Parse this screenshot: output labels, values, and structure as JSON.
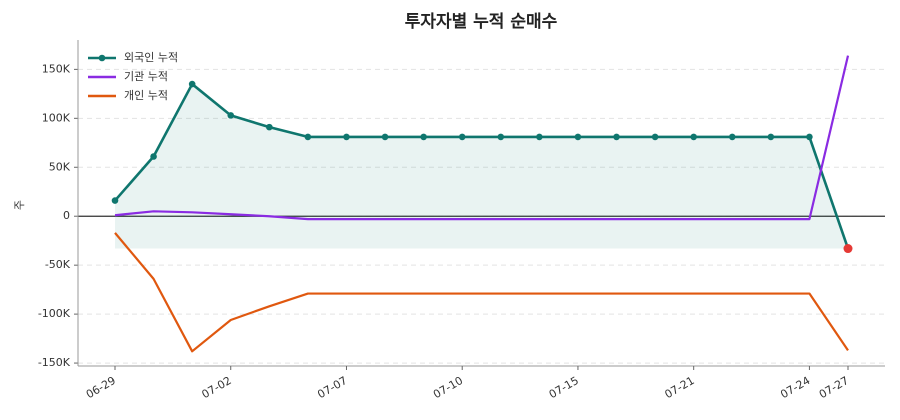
{
  "chart_data": {
    "type": "line",
    "title": "투자자별 누적 순매수",
    "y_label": "주",
    "categories": [
      "06-29",
      null,
      null,
      "07-02",
      null,
      null,
      "07-07",
      null,
      null,
      "07-10",
      null,
      null,
      "07-15",
      null,
      null,
      "07-21",
      null,
      null,
      "07-24",
      "07-27"
    ],
    "series": [
      {
        "name": "외국인 누적",
        "color": "#0f766e",
        "values": [
          16000,
          61000,
          135000,
          103000,
          91000,
          81000,
          81000,
          81000,
          81000,
          81000,
          81000,
          81000,
          81000,
          81000,
          81000,
          81000,
          81000,
          81000,
          81000,
          -33000
        ]
      },
      {
        "name": "기관 누적",
        "color": "#8a2be2",
        "values": [
          1000,
          5000,
          4000,
          2000,
          0,
          -3000,
          -3000,
          -3000,
          -3000,
          -3000,
          -3000,
          -3000,
          -3000,
          -3000,
          -3000,
          -3000,
          -3000,
          -3000,
          -3000,
          164000
        ]
      },
      {
        "name": "개인 누적",
        "color": "#e0580f",
        "values": [
          -17000,
          -64000,
          -138000,
          -106000,
          -92000,
          -79000,
          -79000,
          -79000,
          -79000,
          -79000,
          -79000,
          -79000,
          -79000,
          -79000,
          -79000,
          -79000,
          -79000,
          -79000,
          -79000,
          -137000
        ]
      }
    ],
    "ylim": [
      -153000,
      180000
    ],
    "yticks": [
      {
        "value": -150000,
        "label": "-150K"
      },
      {
        "value": -100000,
        "label": "-100K"
      },
      {
        "value": -50000,
        "label": "-50K"
      },
      0,
      {
        "value": 50000,
        "label": "50K"
      },
      {
        "value": 100000,
        "label": "100K"
      },
      {
        "value": 150000,
        "label": "150K"
      }
    ],
    "grid": true,
    "legend": "upper left"
  }
}
